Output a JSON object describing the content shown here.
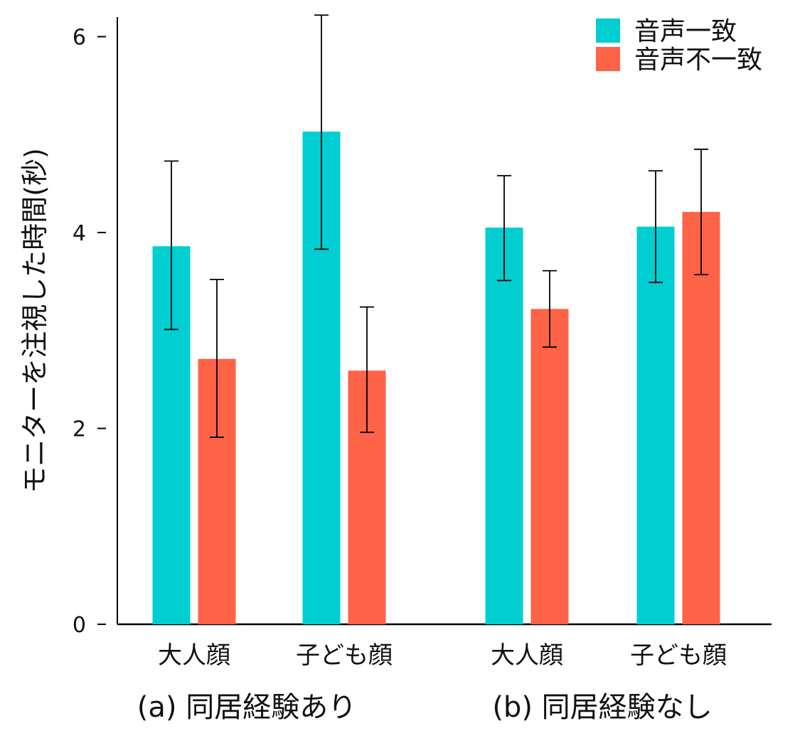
{
  "chart_data": {
    "type": "bar",
    "ylabel": "モニターを注視した時間(秒)",
    "ylim": [
      0,
      6.2
    ],
    "yticks": [
      0,
      2,
      4,
      6
    ],
    "ytick_labels": [
      "0",
      "2",
      "4",
      "6"
    ],
    "grid": false,
    "legend_position": "top-right",
    "colors": {
      "match": "#00CED1",
      "mismatch": "#FF6347",
      "error": "#000000",
      "axis": "#000000"
    },
    "groups": [
      {
        "label": "(a) 同居経験あり",
        "categories": [
          {
            "label": "大人顔",
            "match": {
              "value": 3.86,
              "err_low": 3.01,
              "err_high": 4.73
            },
            "mismatch": {
              "value": 2.71,
              "err_low": 1.91,
              "err_high": 3.52
            }
          },
          {
            "label": "子ども顔",
            "match": {
              "value": 5.03,
              "err_low": 3.83,
              "err_high": 6.22
            },
            "mismatch": {
              "value": 2.59,
              "err_low": 1.96,
              "err_high": 3.24
            }
          }
        ]
      },
      {
        "label": "(b) 同居経験なし",
        "categories": [
          {
            "label": "大人顔",
            "match": {
              "value": 4.05,
              "err_low": 3.51,
              "err_high": 4.58
            },
            "mismatch": {
              "value": 3.22,
              "err_low": 2.83,
              "err_high": 3.61
            }
          },
          {
            "label": "子ども顔",
            "match": {
              "value": 4.06,
              "err_low": 3.49,
              "err_high": 4.63
            },
            "mismatch": {
              "value": 4.21,
              "err_low": 3.57,
              "err_high": 4.85
            }
          }
        ]
      }
    ],
    "series": [
      {
        "key": "match",
        "name": "音声一致"
      },
      {
        "key": "mismatch",
        "name": "音声不一致"
      }
    ]
  }
}
